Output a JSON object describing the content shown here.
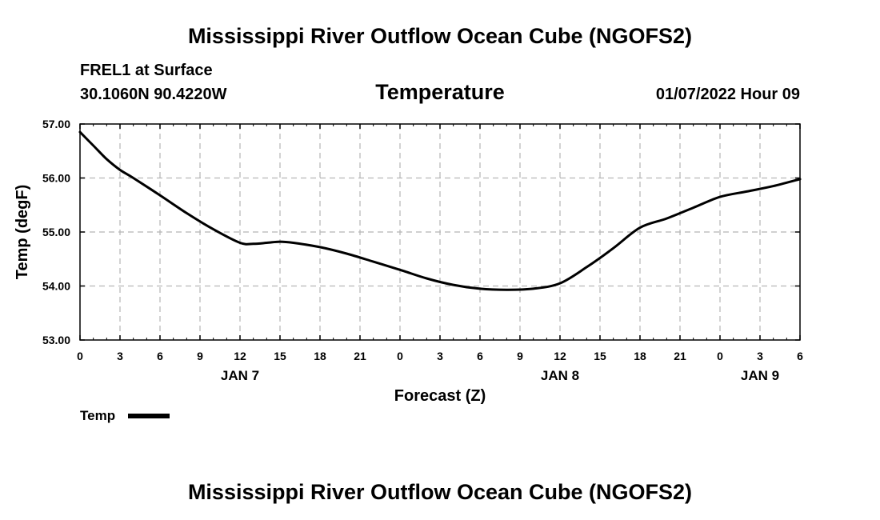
{
  "chart_data": {
    "type": "line",
    "title": "Mississippi River Outflow Ocean Cube (NGOFS2)",
    "footer_title": "Mississippi River Outflow Ocean Cube (NGOFS2)",
    "station": "FREL1 at Surface",
    "location": "30.1060N  90.4220W",
    "subtitle": "Temperature",
    "timestamp": "01/07/2022 Hour 09",
    "xlabel": "Forecast (Z)",
    "ylabel": "Temp (degF)",
    "xlim": [
      0,
      54
    ],
    "ylim": [
      53,
      57
    ],
    "x_ticks": [
      0,
      3,
      6,
      9,
      12,
      15,
      18,
      21,
      24,
      27,
      30,
      33,
      36,
      39,
      42,
      45,
      48,
      51,
      54
    ],
    "x_tick_labels": [
      "0",
      "3",
      "6",
      "9",
      "12",
      "15",
      "18",
      "21",
      "0",
      "3",
      "6",
      "9",
      "12",
      "15",
      "18",
      "21",
      "0",
      "3",
      "6"
    ],
    "day_labels": [
      {
        "x": 12,
        "label": "JAN 7"
      },
      {
        "x": 36,
        "label": "JAN 8"
      },
      {
        "x": 51,
        "label": "JAN 9"
      }
    ],
    "y_ticks": [
      53,
      54,
      55,
      56,
      57
    ],
    "y_tick_labels": [
      "53.00",
      "54.00",
      "55.00",
      "56.00",
      "57.00"
    ],
    "grid": true,
    "legend_position": "bottom-left",
    "series": [
      {
        "name": "Temp",
        "color": "#000000",
        "x": [
          0,
          1,
          2,
          3,
          4,
          6,
          8,
          10,
          12,
          13,
          14,
          15,
          16,
          18,
          20,
          22,
          24,
          26,
          28,
          30,
          32,
          34,
          36,
          38,
          40,
          42,
          44,
          46,
          48,
          50,
          52,
          54
        ],
        "values": [
          56.85,
          56.6,
          56.35,
          56.15,
          56.0,
          55.68,
          55.35,
          55.05,
          54.8,
          54.78,
          54.8,
          54.82,
          54.8,
          54.72,
          54.6,
          54.45,
          54.3,
          54.14,
          54.02,
          53.95,
          53.93,
          53.95,
          54.05,
          54.35,
          54.7,
          55.08,
          55.25,
          55.45,
          55.65,
          55.75,
          55.85,
          55.98
        ]
      }
    ]
  }
}
